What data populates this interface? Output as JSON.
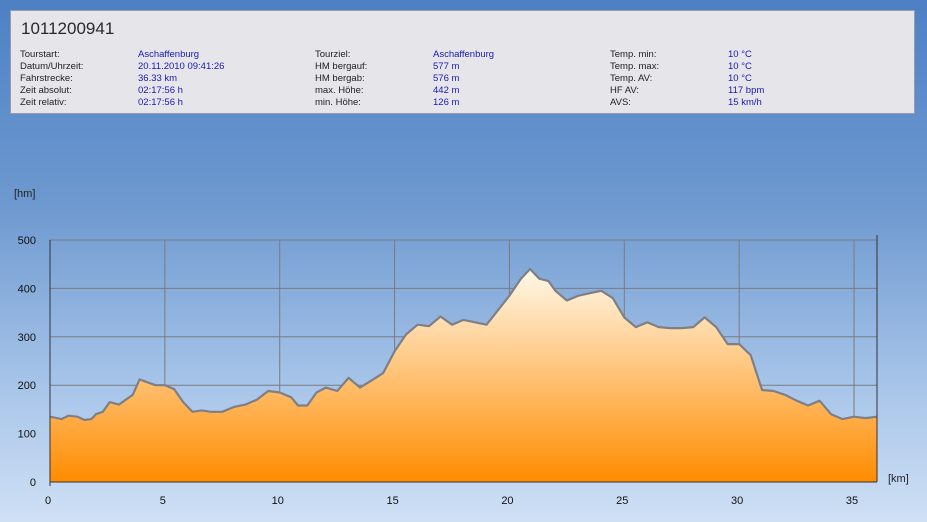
{
  "header": {
    "title": "1011200941",
    "columns": [
      [
        {
          "label": "Tourstart:",
          "value": "Aschaffenburg"
        },
        {
          "label": "Datum/Uhrzeit:",
          "value": "20.11.2010 09:41:26"
        },
        {
          "label": "Fahrstrecke:",
          "value": "36.33 km"
        },
        {
          "label": "Zeit absolut:",
          "value": "02:17:56 h"
        },
        {
          "label": "Zeit relativ:",
          "value": "02:17:56 h"
        }
      ],
      [
        {
          "label": "Tourziel:",
          "value": "Aschaffenburg"
        },
        {
          "label": "HM bergauf:",
          "value": "577 m"
        },
        {
          "label": "HM bergab:",
          "value": "576 m"
        },
        {
          "label": "max. Höhe:",
          "value": "442 m"
        },
        {
          "label": "min. Höhe:",
          "value": "126 m"
        }
      ],
      [
        {
          "label": "Temp. min:",
          "value": "10 °C"
        },
        {
          "label": "Temp. max:",
          "value": "10 °C"
        },
        {
          "label": "Temp. AV:",
          "value": "10 °C"
        },
        {
          "label": "HF AV:",
          "value": "117 bpm"
        },
        {
          "label": "AVS:",
          "value": "15 km/h"
        }
      ]
    ]
  },
  "colors": {
    "fill_top": "#fff8ea",
    "fill_bottom": "#ff8c00",
    "line": "#7f7f85",
    "grid": "#7a7a82"
  },
  "chart_data": {
    "type": "area",
    "ylabel": "[hm]",
    "xlabel": "[km]",
    "xlim": [
      0,
      36
    ],
    "ylim": [
      0,
      500
    ],
    "xticks": [
      "0",
      "5",
      "10",
      "15",
      "20",
      "25",
      "30",
      "35"
    ],
    "yticks": [
      "0",
      "100",
      "200",
      "300",
      "400",
      "500"
    ],
    "grid": true,
    "x": [
      0,
      0.5,
      0.8,
      1.2,
      1.5,
      1.8,
      2.0,
      2.3,
      2.6,
      3.0,
      3.3,
      3.6,
      3.9,
      4.3,
      4.6,
      5.0,
      5.4,
      5.8,
      6.2,
      6.6,
      7.0,
      7.5,
      8.0,
      8.5,
      9.0,
      9.5,
      10.0,
      10.5,
      10.8,
      11.2,
      11.6,
      12.0,
      12.5,
      13.0,
      13.5,
      14.0,
      14.5,
      15.0,
      15.5,
      16.0,
      16.5,
      17.0,
      17.5,
      18.0,
      18.5,
      19.0,
      19.5,
      20.0,
      20.5,
      20.9,
      21.3,
      21.7,
      22.0,
      22.5,
      23.0,
      23.5,
      24.0,
      24.5,
      25.0,
      25.5,
      26.0,
      26.5,
      27.0,
      27.5,
      28.0,
      28.5,
      29.0,
      29.5,
      30.0,
      30.5,
      31.0,
      31.5,
      32.0,
      32.5,
      33.0,
      33.5,
      34.0,
      34.5,
      35.0,
      35.5,
      36.0
    ],
    "y": [
      135,
      130,
      137,
      135,
      128,
      130,
      140,
      145,
      165,
      160,
      170,
      180,
      212,
      205,
      200,
      200,
      192,
      165,
      145,
      148,
      145,
      145,
      155,
      160,
      170,
      188,
      185,
      175,
      158,
      158,
      185,
      195,
      188,
      215,
      195,
      210,
      225,
      270,
      305,
      325,
      322,
      342,
      325,
      335,
      330,
      325,
      355,
      385,
      420,
      440,
      420,
      415,
      395,
      375,
      385,
      390,
      395,
      380,
      340,
      320,
      330,
      320,
      318,
      318,
      320,
      340,
      320,
      285,
      285,
      262,
      190,
      188,
      180,
      168,
      158,
      168,
      140,
      130,
      135,
      132,
      135
    ]
  }
}
